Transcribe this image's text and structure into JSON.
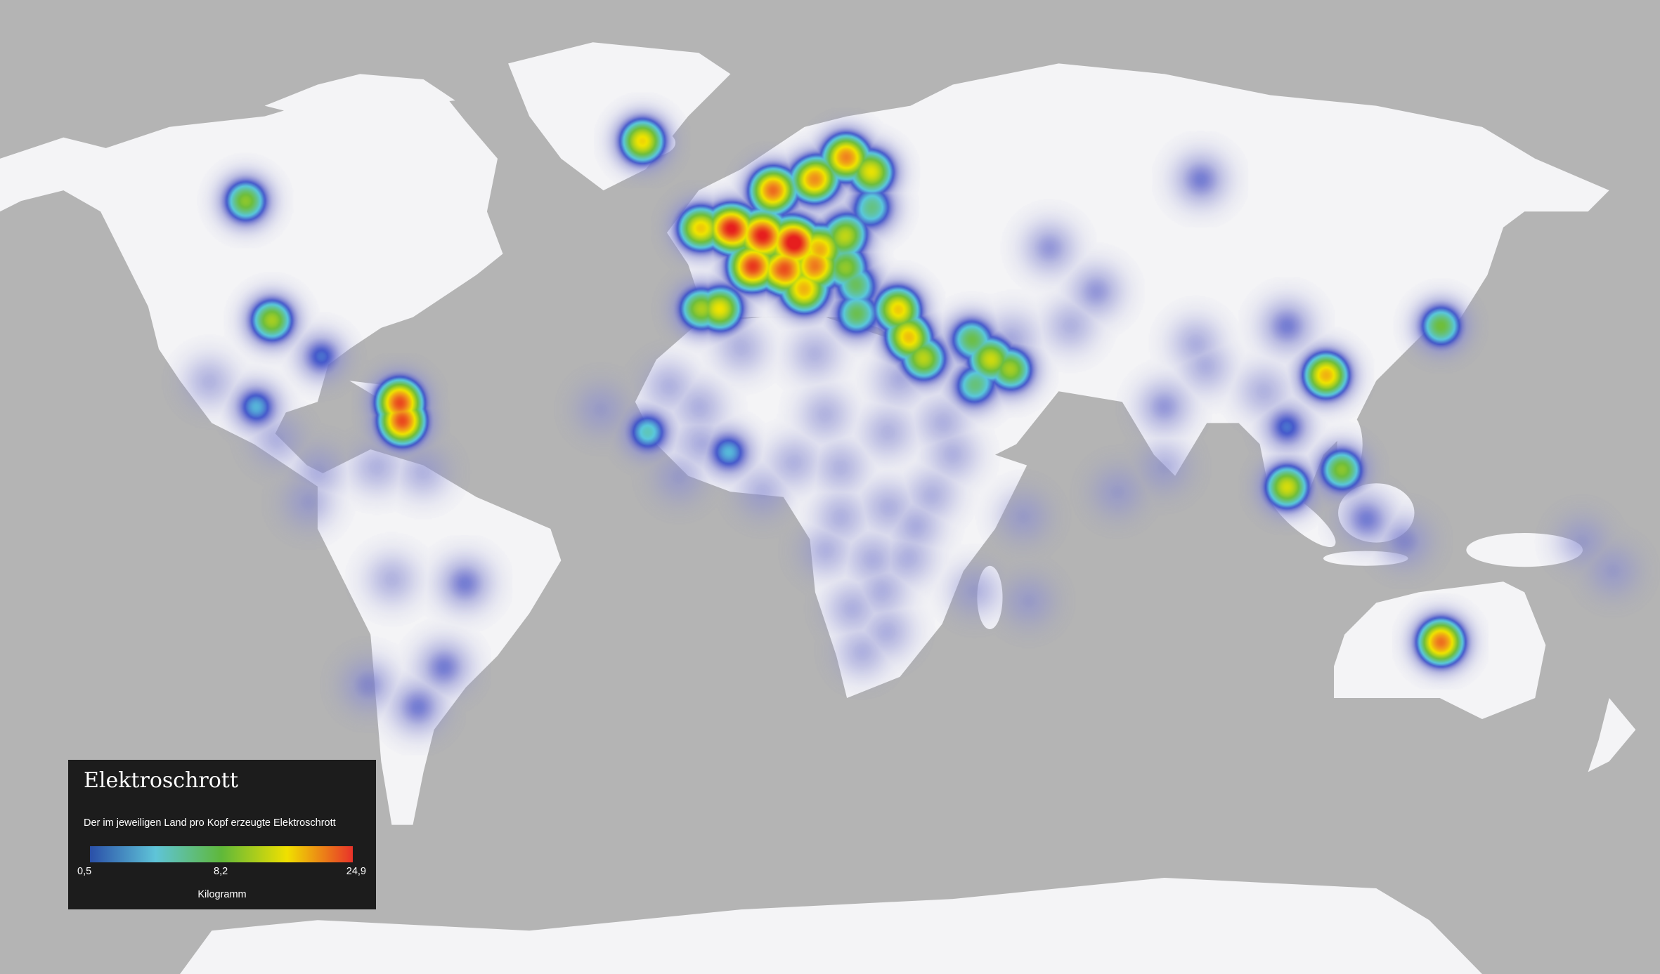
{
  "legend": {
    "title": "Elektroschrott",
    "subtitle": "Der im jeweiligen Land pro Kopf erzeugte Elektroschrott",
    "min_label": "0,5",
    "mid_label": "8,2",
    "max_label": "24,9",
    "unit": "Kilogramm",
    "colors": [
      "#2a4fa8",
      "#5fc4d8",
      "#5fb83a",
      "#f0e000",
      "#e8322a"
    ]
  },
  "colors": {
    "ocean": "#b4b4b4",
    "land": "#f4f4f6",
    "low_halo": "#8c8fd2"
  },
  "chart_data": {
    "type": "heatmap",
    "title": "Elektroschrott",
    "subtitle": "Der im jeweiligen Land pro Kopf erzeugte Elektroschrott",
    "unit": "Kilogramm",
    "scale": {
      "min": 0.5,
      "mid": 8.2,
      "max": 24.9
    },
    "points": [
      {
        "lon": -19,
        "lat": 65,
        "value": 14
      },
      {
        "lon": -95,
        "lat": 57,
        "value": 9
      },
      {
        "lon": -90,
        "lat": 38,
        "value": 10
      },
      {
        "lon": -93,
        "lat": 22,
        "value": 4
      },
      {
        "lon": -65.5,
        "lat": 23,
        "value": 20
      },
      {
        "lon": -65,
        "lat": 19,
        "value": 20
      },
      {
        "lon": -80.5,
        "lat": 31.5,
        "value": 3
      },
      {
        "lon": -102,
        "lat": 26.8,
        "value": 1
      },
      {
        "lon": -89,
        "lat": 15.5,
        "value": 1
      },
      {
        "lon": -81,
        "lat": 9.2,
        "value": 1
      },
      {
        "lon": -70,
        "lat": 10,
        "value": 1
      },
      {
        "lon": -61,
        "lat": 9,
        "value": 1
      },
      {
        "lon": -83,
        "lat": 2.8,
        "value": 1
      },
      {
        "lon": -67,
        "lat": -12.7,
        "value": 1
      },
      {
        "lon": -53,
        "lat": -13.5,
        "value": 2
      },
      {
        "lon": -57,
        "lat": -29.7,
        "value": 2
      },
      {
        "lon": -62,
        "lat": -37,
        "value": 2
      },
      {
        "lon": -71.5,
        "lat": -33,
        "value": 1.5
      },
      {
        "lon": -2,
        "lat": 53,
        "value": 24
      },
      {
        "lon": -8,
        "lat": 53,
        "value": 14
      },
      {
        "lon": 4,
        "lat": 52,
        "value": 23
      },
      {
        "lon": 10,
        "lat": 51,
        "value": 24
      },
      {
        "lon": 2,
        "lat": 47,
        "value": 22
      },
      {
        "lon": 6,
        "lat": 58.5,
        "value": 20
      },
      {
        "lon": 20,
        "lat": 63,
        "value": 18
      },
      {
        "lon": 14,
        "lat": 60,
        "value": 18
      },
      {
        "lon": 25,
        "lat": 61,
        "value": 12
      },
      {
        "lon": -4,
        "lat": 40,
        "value": 12
      },
      {
        "lon": -8,
        "lat": 40,
        "value": 9
      },
      {
        "lon": 12,
        "lat": 43,
        "value": 14
      },
      {
        "lon": 8,
        "lat": 46.5,
        "value": 20
      },
      {
        "lon": 14,
        "lat": 47,
        "value": 16
      },
      {
        "lon": 20,
        "lat": 52,
        "value": 10
      },
      {
        "lon": 15,
        "lat": 50,
        "value": 14
      },
      {
        "lon": 20,
        "lat": 47,
        "value": 8
      },
      {
        "lon": 22,
        "lat": 44,
        "value": 6
      },
      {
        "lon": 22,
        "lat": 39,
        "value": 7
      },
      {
        "lon": 25,
        "lat": 56,
        "value": 6
      },
      {
        "lon": 30,
        "lat": 40,
        "value": 14
      },
      {
        "lon": 32,
        "lat": 35,
        "value": 14
      },
      {
        "lon": 35,
        "lat": 31,
        "value": 10
      },
      {
        "lon": 44,
        "lat": 34.7,
        "value": 7
      },
      {
        "lon": 47.7,
        "lat": 31,
        "value": 10
      },
      {
        "lon": 44.6,
        "lat": 26,
        "value": 6
      },
      {
        "lon": 51.7,
        "lat": 29,
        "value": 9
      },
      {
        "lon": 88,
        "lat": 60,
        "value": 2
      },
      {
        "lon": 59,
        "lat": 50,
        "value": 1.5
      },
      {
        "lon": 68,
        "lat": 43,
        "value": 1.5
      },
      {
        "lon": 63,
        "lat": 37,
        "value": 1
      },
      {
        "lon": 52,
        "lat": 35,
        "value": 1
      },
      {
        "lon": 104.5,
        "lat": 37,
        "value": 2
      },
      {
        "lon": 134,
        "lat": 37,
        "value": 8
      },
      {
        "lon": 112,
        "lat": 28,
        "value": 16
      },
      {
        "lon": 104.5,
        "lat": 18,
        "value": 3
      },
      {
        "lon": 115,
        "lat": 9.5,
        "value": 9
      },
      {
        "lon": 104.5,
        "lat": 6,
        "value": 12
      },
      {
        "lon": 119.7,
        "lat": -0.5,
        "value": 2
      },
      {
        "lon": 127,
        "lat": -5,
        "value": 1.5
      },
      {
        "lon": 81,
        "lat": 22,
        "value": 1.5
      },
      {
        "lon": 81,
        "lat": 10,
        "value": 1
      },
      {
        "lon": 100,
        "lat": 25,
        "value": 1
      },
      {
        "lon": 87,
        "lat": 34,
        "value": 1
      },
      {
        "lon": 89,
        "lat": 29.5,
        "value": 1
      },
      {
        "lon": 72,
        "lat": 5,
        "value": 1
      },
      {
        "lon": 134,
        "lat": -25,
        "value": 20
      },
      {
        "lon": 161,
        "lat": -5,
        "value": 1
      },
      {
        "lon": 167,
        "lat": -11,
        "value": 1
      },
      {
        "lon": 0,
        "lat": 33,
        "value": 1
      },
      {
        "lon": 14,
        "lat": 32,
        "value": 1
      },
      {
        "lon": -8,
        "lat": 22,
        "value": 1
      },
      {
        "lon": 16,
        "lat": 20.5,
        "value": 1
      },
      {
        "lon": 28,
        "lat": 17,
        "value": 1
      },
      {
        "lon": 10,
        "lat": 11,
        "value": 1
      },
      {
        "lon": 19,
        "lat": 10,
        "value": 1
      },
      {
        "lon": 30,
        "lat": 27,
        "value": 1
      },
      {
        "lon": 38.5,
        "lat": 19,
        "value": 1
      },
      {
        "lon": 40.5,
        "lat": 12.5,
        "value": 1
      },
      {
        "lon": 28,
        "lat": 2,
        "value": 1
      },
      {
        "lon": 33.5,
        "lat": -2,
        "value": 1
      },
      {
        "lon": 36.5,
        "lat": 4.5,
        "value": 1
      },
      {
        "lon": 19,
        "lat": 0,
        "value": 1
      },
      {
        "lon": 16,
        "lat": -7,
        "value": 1
      },
      {
        "lon": 25,
        "lat": -8.5,
        "value": 1
      },
      {
        "lon": 32,
        "lat": -8.5,
        "value": 1
      },
      {
        "lon": 21,
        "lat": -18.5,
        "value": 1
      },
      {
        "lon": 27,
        "lat": -15,
        "value": 1
      },
      {
        "lon": 28,
        "lat": -23,
        "value": 1
      },
      {
        "lon": 23,
        "lat": -27,
        "value": 1
      },
      {
        "lon": 54,
        "lat": 0,
        "value": 1
      },
      {
        "lon": 55,
        "lat": -17,
        "value": 1
      },
      {
        "lon": 44.6,
        "lat": -15,
        "value": 1
      },
      {
        "lon": 4,
        "lat": 5,
        "value": 1
      },
      {
        "lon": -2.4,
        "lat": 13,
        "value": 4
      },
      {
        "lon": -18,
        "lat": 17,
        "value": 5
      },
      {
        "lon": -27,
        "lat": 21.5,
        "value": 1
      },
      {
        "lon": -14,
        "lat": 26,
        "value": 1
      },
      {
        "lon": -8,
        "lat": 15,
        "value": 1
      },
      {
        "lon": -12,
        "lat": 8,
        "value": 1
      }
    ]
  }
}
